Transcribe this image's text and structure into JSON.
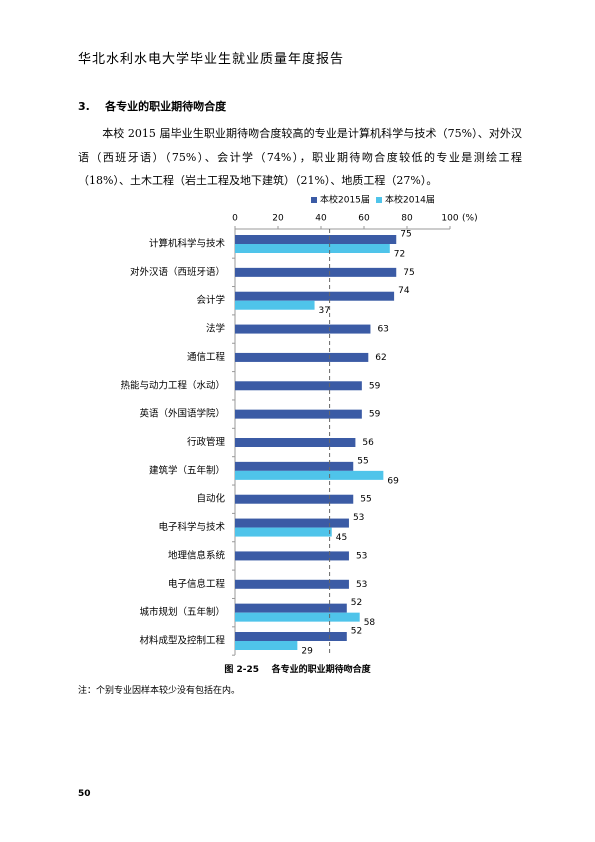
{
  "header": "华北水利水电大学毕业生就业质量年度报告",
  "section_title": "3.    各专业的职业期待吻合度",
  "paragraph": "本校 2015 届毕业生职业期待吻合度较高的专业是计算机科学与技术（75%）、对外汉语（西班牙语）（75%）、会计学（74%），职业期待吻合度较低的专业是测绘工程（18%）、土木工程（岩土工程及地下建筑）（21%）、地质工程（27%）。",
  "chart_data": {
    "type": "bar",
    "orientation": "horizontal",
    "categories": [
      "计算机科学与技术",
      "对外汉语（西班牙语）",
      "会计学",
      "法学",
      "通信工程",
      "热能与动力工程（水动）",
      "英语（外国语学院）",
      "行政管理",
      "建筑学（五年制）",
      "自动化",
      "电子科学与技术",
      "地理信息系统",
      "电子信息工程",
      "城市规划（五年制）",
      "材料成型及控制工程"
    ],
    "series": [
      {
        "name": "本校2015届",
        "color": "#3b5ba5",
        "values": [
          75,
          75,
          74,
          63,
          62,
          59,
          59,
          56,
          55,
          55,
          53,
          53,
          53,
          52,
          52
        ]
      },
      {
        "name": "本校2014届",
        "color": "#4fc4ea",
        "values": [
          72,
          null,
          37,
          null,
          null,
          null,
          null,
          null,
          69,
          null,
          45,
          null,
          null,
          58,
          29
        ]
      }
    ],
    "xlim": [
      0,
      100
    ],
    "xticks": [
      0,
      20,
      40,
      60,
      80,
      100
    ],
    "x_unit": "(%)",
    "reference_line": 44,
    "legend": "top"
  },
  "caption": "图 2-25    各专业的职业期待吻合度",
  "note": "注：个别专业因样本较少没有包括在内。",
  "page_number": "50"
}
